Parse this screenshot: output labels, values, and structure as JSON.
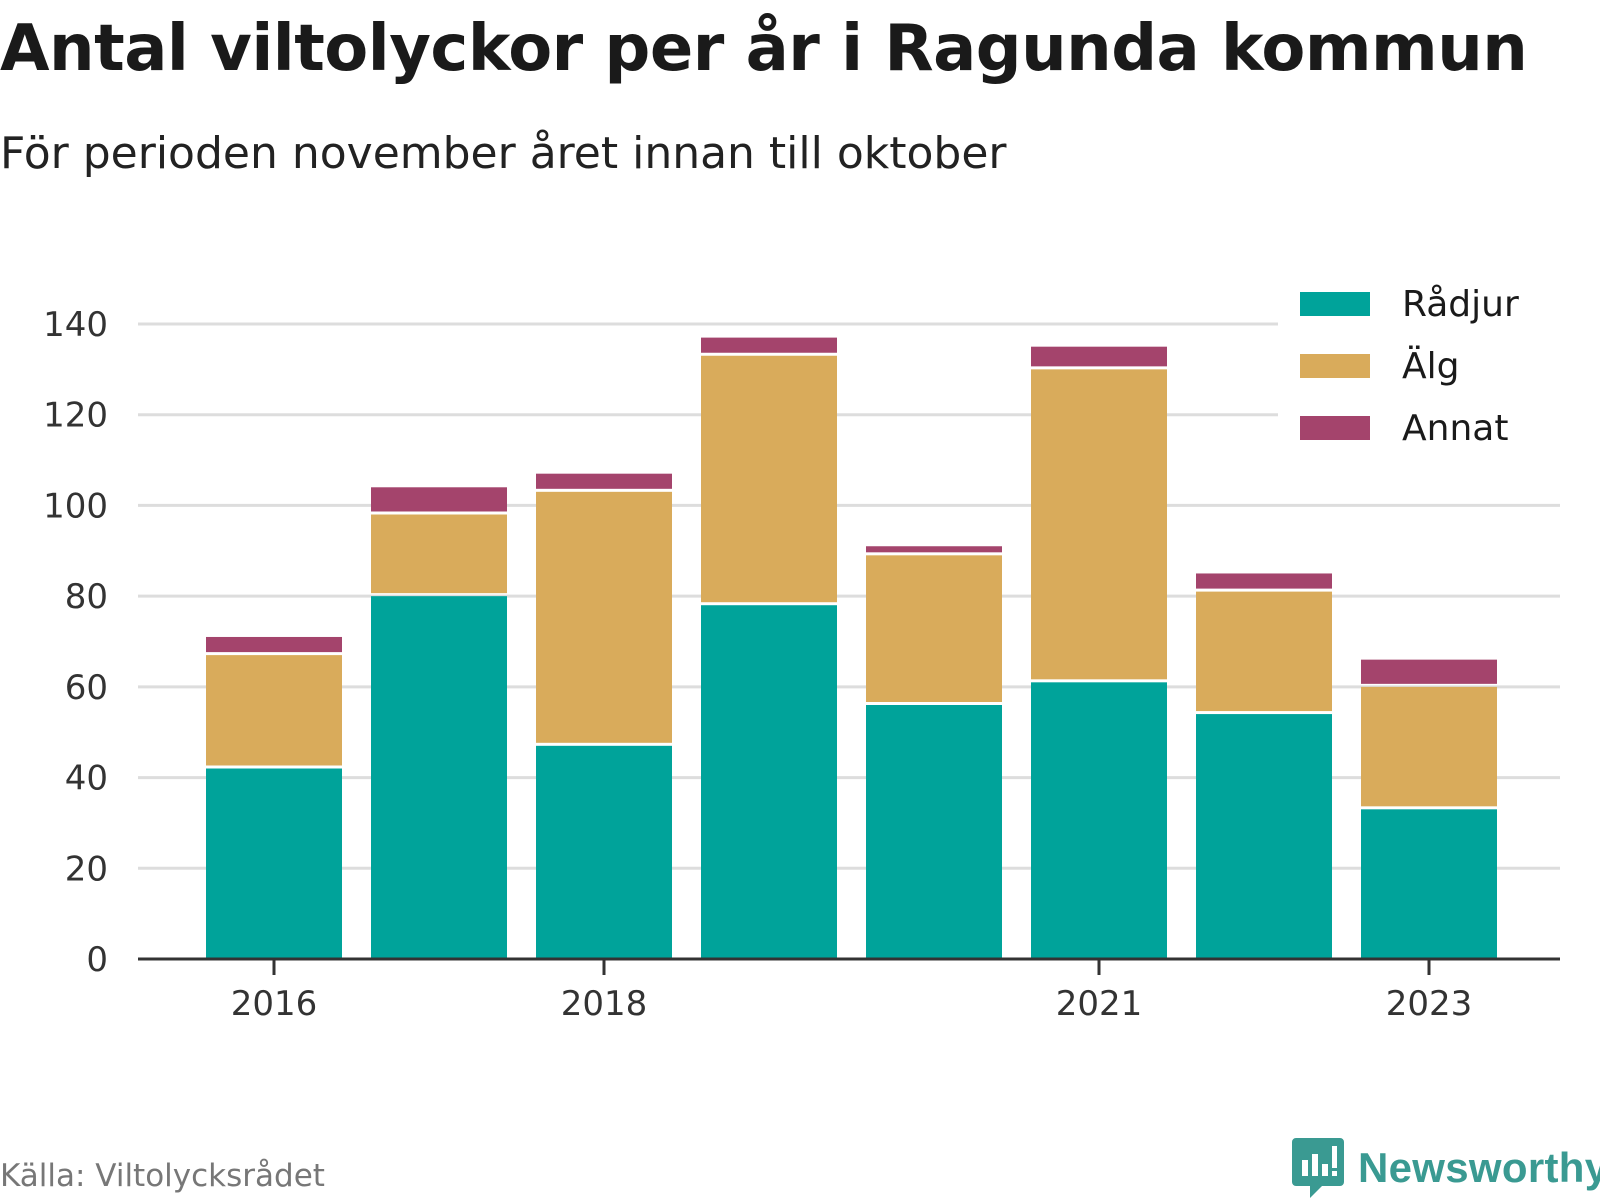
{
  "header": {
    "title": "Antal viltolyckor per år i Ragunda kommun",
    "subtitle": "För perioden november året innan till oktober"
  },
  "footer": {
    "source": "Källa: Viltolycksrådet",
    "brand": "Newsworthy",
    "brand_icon": "newsworthy-logo-icon"
  },
  "colors": {
    "radjur": "#00a39a",
    "alg": "#d9ab5b",
    "annat": "#a4446c",
    "gridline": "#dddddd",
    "axis": "#333333",
    "brand": "#3a9a92"
  },
  "chart_data": {
    "type": "bar",
    "stacked": true,
    "x": [
      2016,
      2017,
      2018,
      2019,
      2020,
      2021,
      2022,
      2023
    ],
    "x_tick_labels": [
      "2016",
      "2018",
      "2021",
      "2023"
    ],
    "series": [
      {
        "name": "Rådjur",
        "color": "#00a39a",
        "values": [
          42,
          80,
          47,
          78,
          56,
          61,
          54,
          33
        ]
      },
      {
        "name": "Älg",
        "color": "#d9ab5b",
        "values": [
          25,
          18,
          56,
          55,
          33,
          69,
          27,
          27
        ]
      },
      {
        "name": "Annat",
        "color": "#a4446c",
        "values": [
          4,
          6,
          4,
          4,
          2,
          5,
          4,
          6
        ]
      }
    ],
    "ylim": [
      0,
      140
    ],
    "y_ticks": [
      0,
      20,
      40,
      60,
      80,
      100,
      120,
      140
    ],
    "grid": true,
    "legend_position": "top-right",
    "xlabel": "",
    "ylabel": ""
  }
}
